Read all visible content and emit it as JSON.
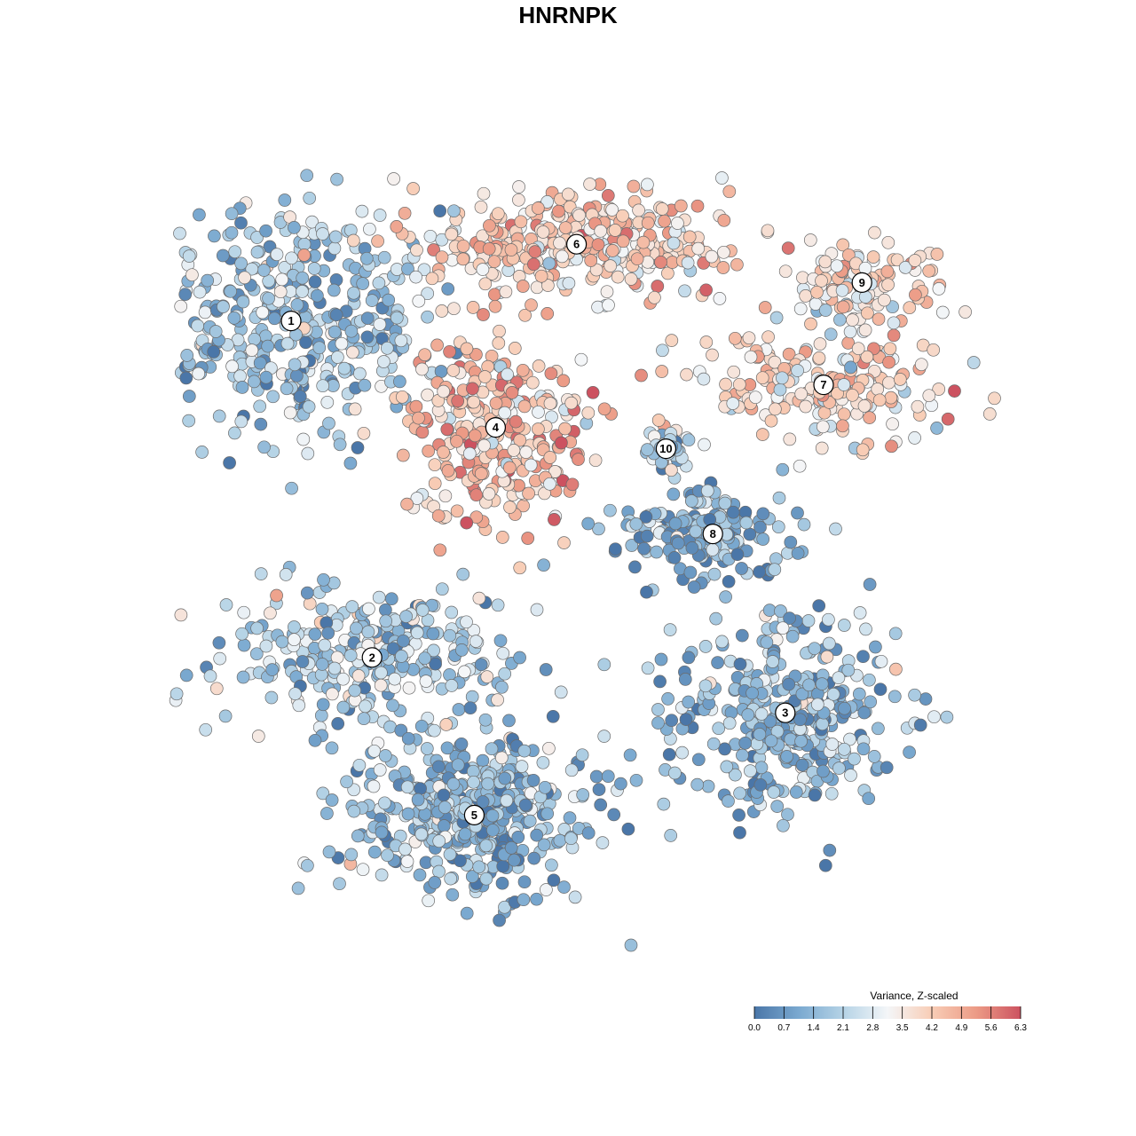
{
  "chart_data": {
    "type": "scatter",
    "title": "HNRNPK",
    "xlabel": "",
    "ylabel": "",
    "grid": false,
    "color_scale": {
      "title": "Variance, Z-scaled",
      "min": 0.0,
      "max": 6.3,
      "ticks": [
        "0.0",
        "0.7",
        "1.4",
        "2.1",
        "2.8",
        "3.5",
        "4.2",
        "4.9",
        "5.6",
        "6.3"
      ],
      "colors": [
        "#4a76a8",
        "#7aa9d0",
        "#b5d3e6",
        "#f4f6f8",
        "#f8cdb6",
        "#ec9b86",
        "#cc5260"
      ],
      "legend_position": "bottom-right"
    },
    "clusters": [
      {
        "label": "1",
        "x": -6.5,
        "y": 5.8,
        "mean": 1.7,
        "spread_x": 3.2,
        "spread_y": 2.6,
        "count": 420
      },
      {
        "label": "2",
        "x": -4.6,
        "y": -2.1,
        "mean": 2.0,
        "spread_x": 3.4,
        "spread_y": 1.6,
        "count": 300
      },
      {
        "label": "3",
        "x": 5.1,
        "y": -3.4,
        "mean": 1.5,
        "spread_x": 2.4,
        "spread_y": 2.2,
        "count": 360
      },
      {
        "label": "4",
        "x": -1.7,
        "y": 3.3,
        "mean": 4.4,
        "spread_x": 2.0,
        "spread_y": 2.0,
        "count": 280
      },
      {
        "label": "5",
        "x": -2.2,
        "y": -5.8,
        "mean": 1.4,
        "spread_x": 2.8,
        "spread_y": 1.8,
        "count": 420
      },
      {
        "label": "6",
        "x": 0.2,
        "y": 7.6,
        "mean": 4.0,
        "spread_x": 3.4,
        "spread_y": 1.0,
        "count": 340
      },
      {
        "label": "7",
        "x": 6.0,
        "y": 4.3,
        "mean": 3.9,
        "spread_x": 2.8,
        "spread_y": 1.1,
        "count": 200
      },
      {
        "label": "8",
        "x": 3.4,
        "y": 0.8,
        "mean": 1.0,
        "spread_x": 2.0,
        "spread_y": 0.9,
        "count": 170
      },
      {
        "label": "9",
        "x": 6.9,
        "y": 6.7,
        "mean": 3.6,
        "spread_x": 1.6,
        "spread_y": 0.9,
        "count": 110
      },
      {
        "label": "10",
        "x": 2.3,
        "y": 2.8,
        "mean": 1.9,
        "spread_x": 0.5,
        "spread_y": 0.5,
        "count": 45
      }
    ],
    "xlim": [
      -12,
      12
    ],
    "ylim": [
      -12,
      12
    ]
  }
}
